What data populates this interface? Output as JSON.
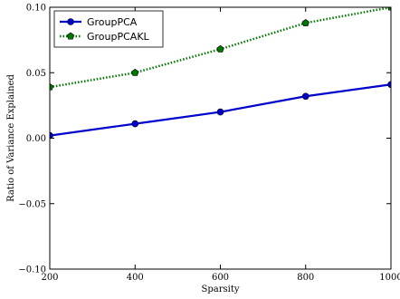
{
  "chart_data": {
    "type": "line",
    "title": "",
    "xlabel": "Sparsity",
    "ylabel": "Ratio of Variance Explained",
    "x": [
      200,
      400,
      600,
      800,
      1000
    ],
    "xlim": [
      200,
      1000
    ],
    "ylim": [
      -0.1,
      0.1
    ],
    "xticks": [
      200,
      400,
      600,
      800,
      1000
    ],
    "yticks": [
      -0.1,
      -0.05,
      0.0,
      0.05,
      0.1
    ],
    "xtick_labels": [
      "200",
      "400",
      "600",
      "800",
      "1000"
    ],
    "ytick_labels": [
      "−0.10",
      "−0.05",
      "0.00",
      "0.05",
      "0.10"
    ],
    "grid": false,
    "legend_position": "top-left",
    "series": [
      {
        "name": "GroupPCA",
        "values": [
          0.002,
          0.011,
          0.02,
          0.032,
          0.041
        ],
        "color": "#0000cc",
        "line_style": "solid",
        "marker": "circle"
      },
      {
        "name": "GroupPCAKL",
        "values": [
          0.039,
          0.05,
          0.068,
          0.088,
          0.1
        ],
        "color": "#007700",
        "line_style": "dotted",
        "marker": "pentagon"
      }
    ]
  }
}
